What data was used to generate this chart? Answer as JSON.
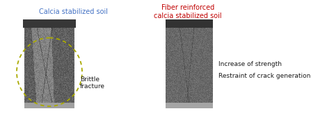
{
  "title_left": "Calcia stabilized soil",
  "title_right": "Fiber reinforced\ncalcia stabilized soil",
  "title_left_color": "#4472C4",
  "title_right_color": "#C00000",
  "label_brittle": "Brittle\nfracture",
  "label_increase": "Increase of strength",
  "label_restraint": "Restraint of crack generation",
  "annotation_color": "#AAAA00",
  "bg_color": "#ffffff",
  "text_color": "#1a1a1a",
  "fig_width": 4.47,
  "fig_height": 1.7,
  "dpi": 100
}
